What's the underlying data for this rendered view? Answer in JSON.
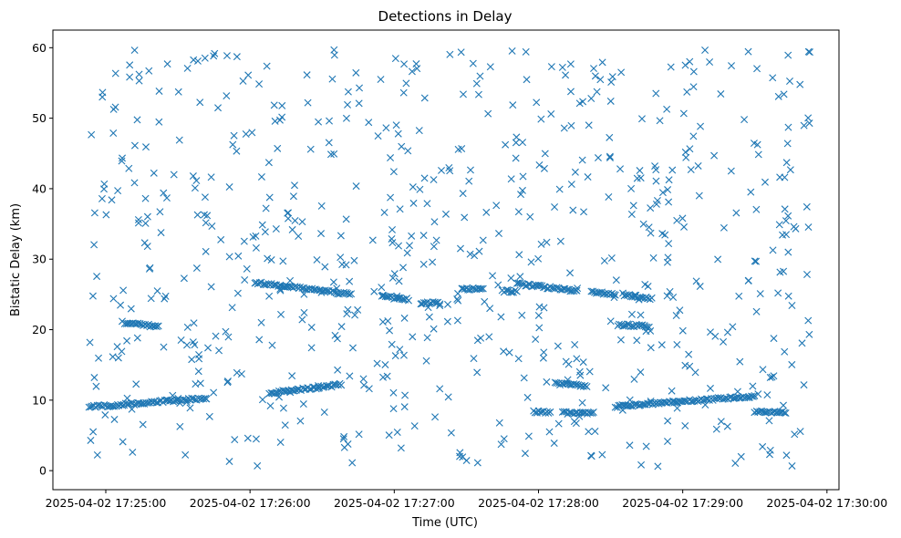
{
  "chart_data": {
    "type": "scatter",
    "title": "Detections in Delay",
    "xlabel": "Time (UTC)",
    "ylabel": "Bistatic Delay (km)",
    "x_tick_labels": [
      "2025-04-02 17:25:00",
      "2025-04-02 17:26:00",
      "2025-04-02 17:27:00",
      "2025-04-02 17:28:00",
      "2025-04-02 17:29:00",
      "2025-04-02 17:30:00"
    ],
    "y_ticks": [
      0,
      10,
      20,
      30,
      40,
      50,
      60
    ],
    "xlim": [
      "2025-04-02 17:24:38",
      "2025-04-02 17:30:05"
    ],
    "ylim": [
      -2.7,
      62.5
    ],
    "marker": "x",
    "marker_color": "#1f77b4",
    "grid": false,
    "series": [
      {
        "name": "",
        "description_of_tracks": "Background: ~700 uniformly scattered detections between 0 and 60 km delay.",
        "tracks": [
          {
            "from": "2025-04-02 17:24:53",
            "to": "2025-04-02 17:25:42",
            "delay_start": 9.0,
            "delay_end": 10.3
          },
          {
            "from": "2025-04-02 17:25:08",
            "to": "2025-04-02 17:25:22",
            "delay_start": 21.0,
            "delay_end": 20.4
          },
          {
            "from": "2025-04-02 17:26:02",
            "to": "2025-04-02 17:26:42",
            "delay_start": 26.7,
            "delay_end": 25.0
          },
          {
            "from": "2025-04-02 17:26:08",
            "to": "2025-04-02 17:26:38",
            "delay_start": 11.0,
            "delay_end": 12.2
          },
          {
            "from": "2025-04-02 17:26:55",
            "to": "2025-04-02 17:27:06",
            "delay_start": 24.7,
            "delay_end": 24.3
          },
          {
            "from": "2025-04-02 17:27:11",
            "to": "2025-04-02 17:27:19",
            "delay_start": 23.8,
            "delay_end": 23.8
          },
          {
            "from": "2025-04-02 17:27:28",
            "to": "2025-04-02 17:27:37",
            "delay_start": 25.8,
            "delay_end": 25.7
          },
          {
            "from": "2025-04-02 17:27:45",
            "to": "2025-04-02 17:27:51",
            "delay_start": 25.5,
            "delay_end": 25.4
          },
          {
            "from": "2025-04-02 17:27:51",
            "to": "2025-04-02 17:28:16",
            "delay_start": 26.5,
            "delay_end": 25.5
          },
          {
            "from": "2025-04-02 17:27:58",
            "to": "2025-04-02 17:28:05",
            "delay_start": 8.3,
            "delay_end": 8.3
          },
          {
            "from": "2025-04-02 17:28:07",
            "to": "2025-04-02 17:28:20",
            "delay_start": 12.4,
            "delay_end": 12.0
          },
          {
            "from": "2025-04-02 17:28:10",
            "to": "2025-04-02 17:28:23",
            "delay_start": 8.2,
            "delay_end": 8.2
          },
          {
            "from": "2025-04-02 17:28:22",
            "to": "2025-04-02 17:28:32",
            "delay_start": 25.3,
            "delay_end": 25.0
          },
          {
            "from": "2025-04-02 17:28:33",
            "to": "2025-04-02 17:28:46",
            "delay_start": 20.7,
            "delay_end": 20.5
          },
          {
            "from": "2025-04-02 17:28:35",
            "to": "2025-04-02 17:28:47",
            "delay_start": 25.0,
            "delay_end": 24.4
          },
          {
            "from": "2025-04-02 17:28:32",
            "to": "2025-04-02 17:29:30",
            "delay_start": 9.1,
            "delay_end": 10.6
          },
          {
            "from": "2025-04-02 17:29:30",
            "to": "2025-04-02 17:29:43",
            "delay_start": 8.3,
            "delay_end": 8.3
          }
        ]
      }
    ]
  }
}
